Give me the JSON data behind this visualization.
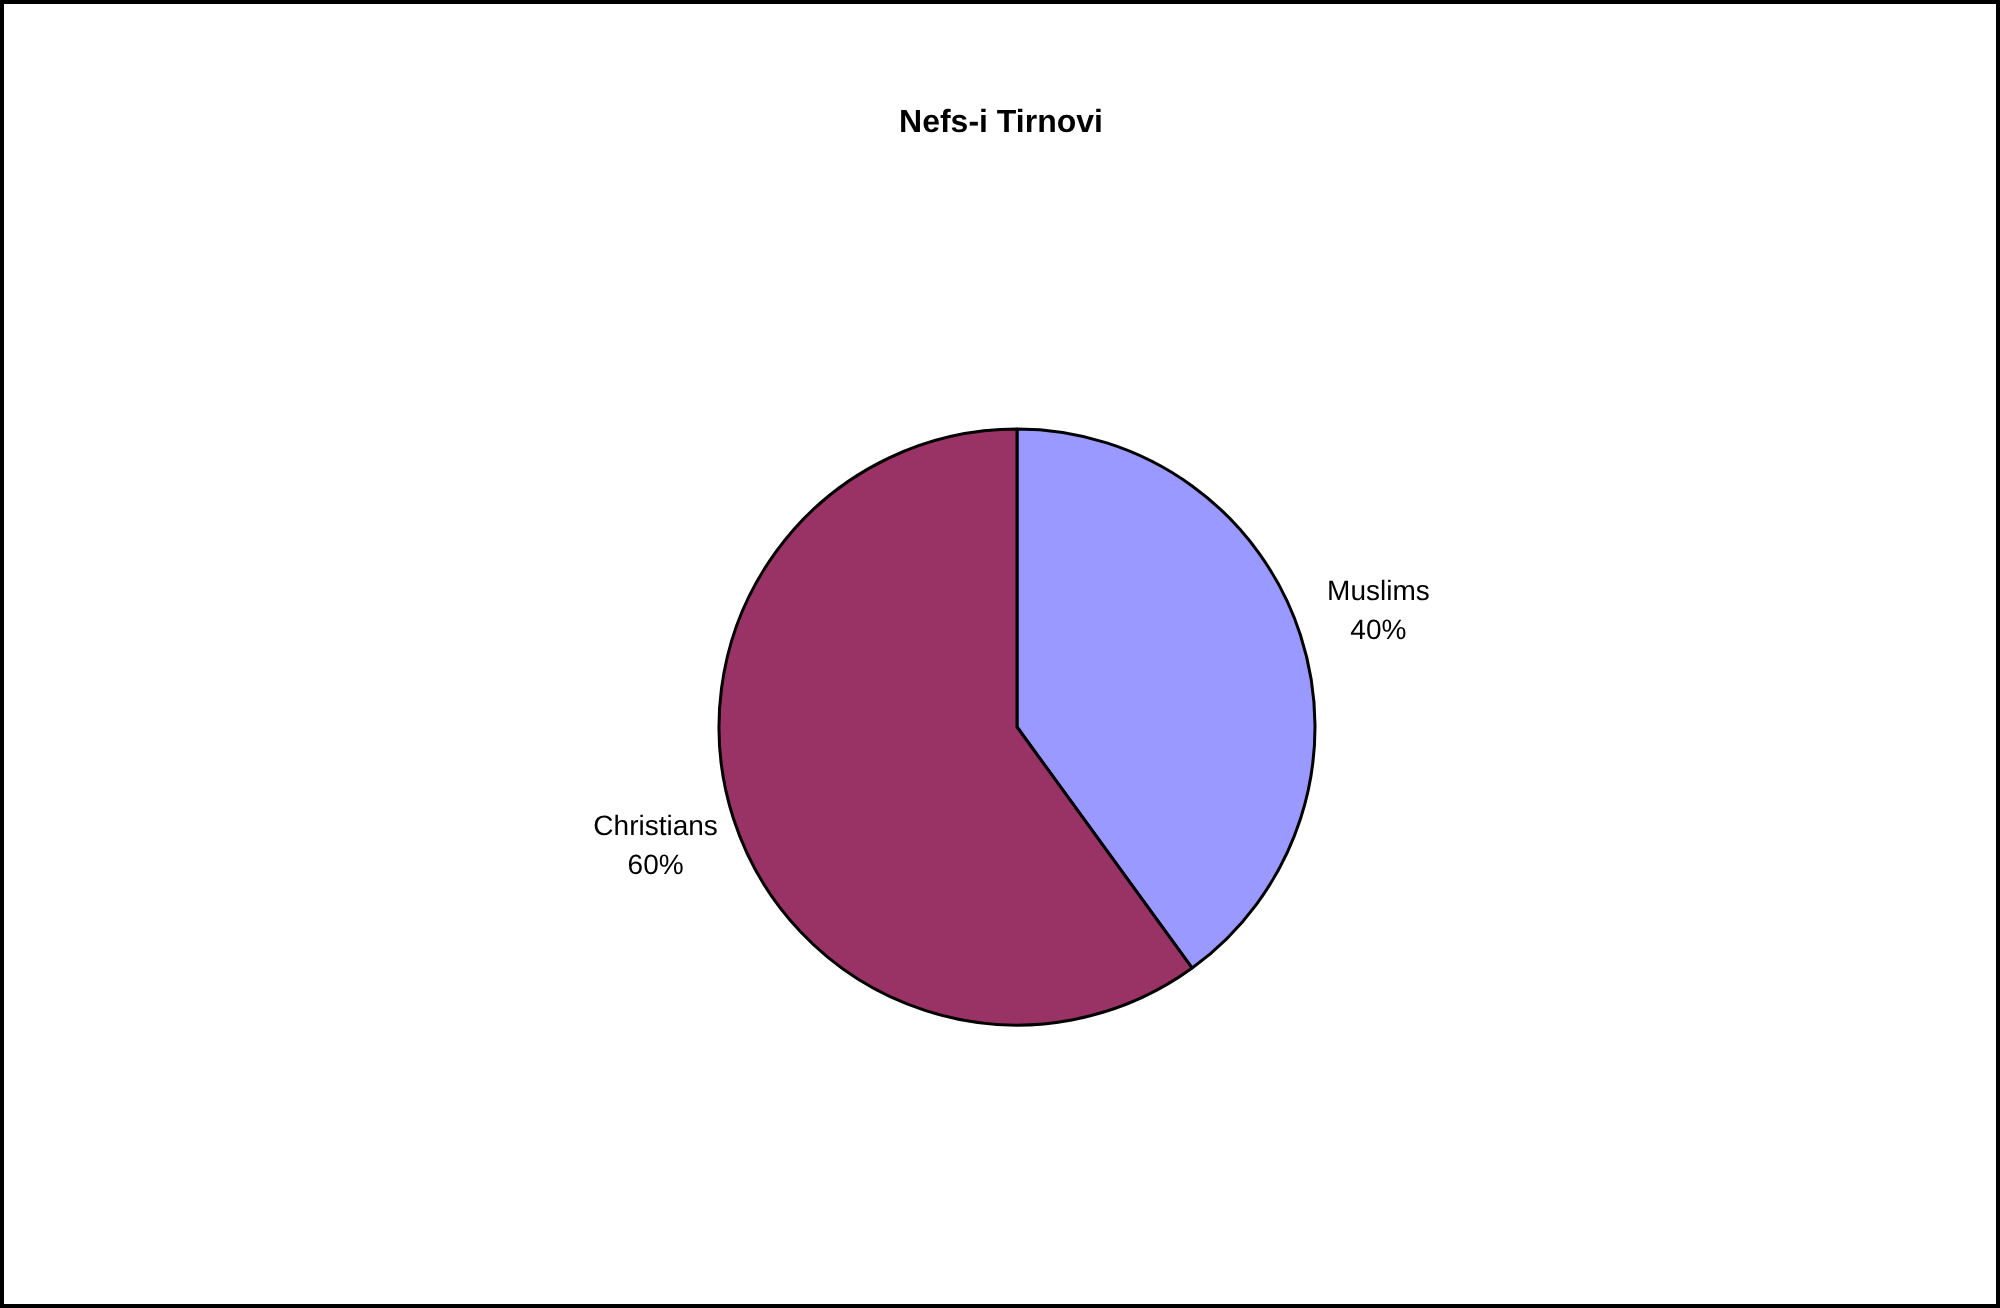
{
  "chart_data": {
    "type": "pie",
    "title": "Nefs-i Tirnovi",
    "categories": [
      "Muslims",
      "Christians"
    ],
    "values": [
      40,
      60
    ],
    "colors": [
      "#9999ff",
      "#993366"
    ],
    "value_labels": [
      "40%",
      "60%"
    ]
  }
}
